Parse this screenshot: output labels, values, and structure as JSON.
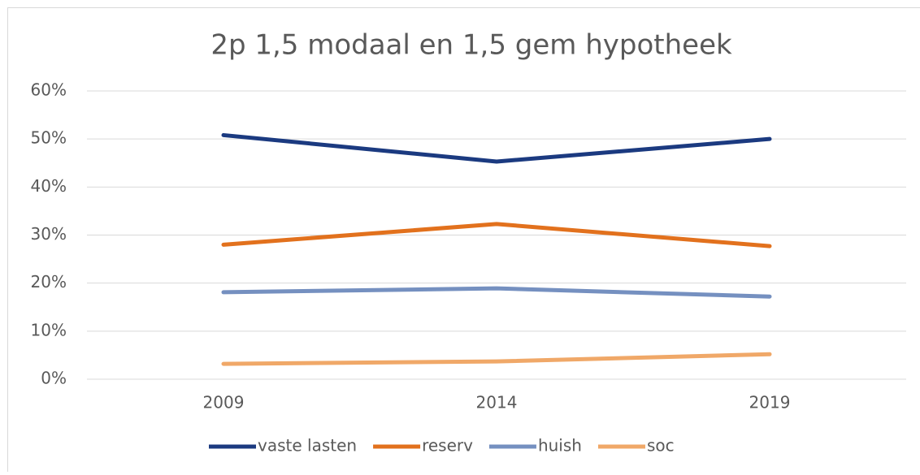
{
  "chart_data": {
    "type": "line",
    "title": "2p 1,5 modaal en 1,5 gem hypotheek",
    "categories": [
      "2009",
      "2014",
      "2019"
    ],
    "series": [
      {
        "name": "vaste lasten",
        "color": "#1b3a80",
        "values": [
          50.8,
          45.3,
          50.0
        ]
      },
      {
        "name": "reserv",
        "color": "#e2711d",
        "values": [
          28.0,
          32.3,
          27.7
        ]
      },
      {
        "name": "huish",
        "color": "#7590c0",
        "values": [
          18.1,
          18.9,
          17.2
        ]
      },
      {
        "name": "soc",
        "color": "#f0a868",
        "values": [
          3.2,
          3.7,
          5.2
        ]
      }
    ],
    "ylim": [
      0,
      60
    ],
    "yticks": [
      {
        "value": 0,
        "label": "0%"
      },
      {
        "value": 10,
        "label": "10%"
      },
      {
        "value": 20,
        "label": "20%"
      },
      {
        "value": 30,
        "label": "30%"
      },
      {
        "value": 40,
        "label": "40%"
      },
      {
        "value": 50,
        "label": "50%"
      },
      {
        "value": 60,
        "label": "60%"
      }
    ],
    "grid": true,
    "legend": "bottom"
  }
}
